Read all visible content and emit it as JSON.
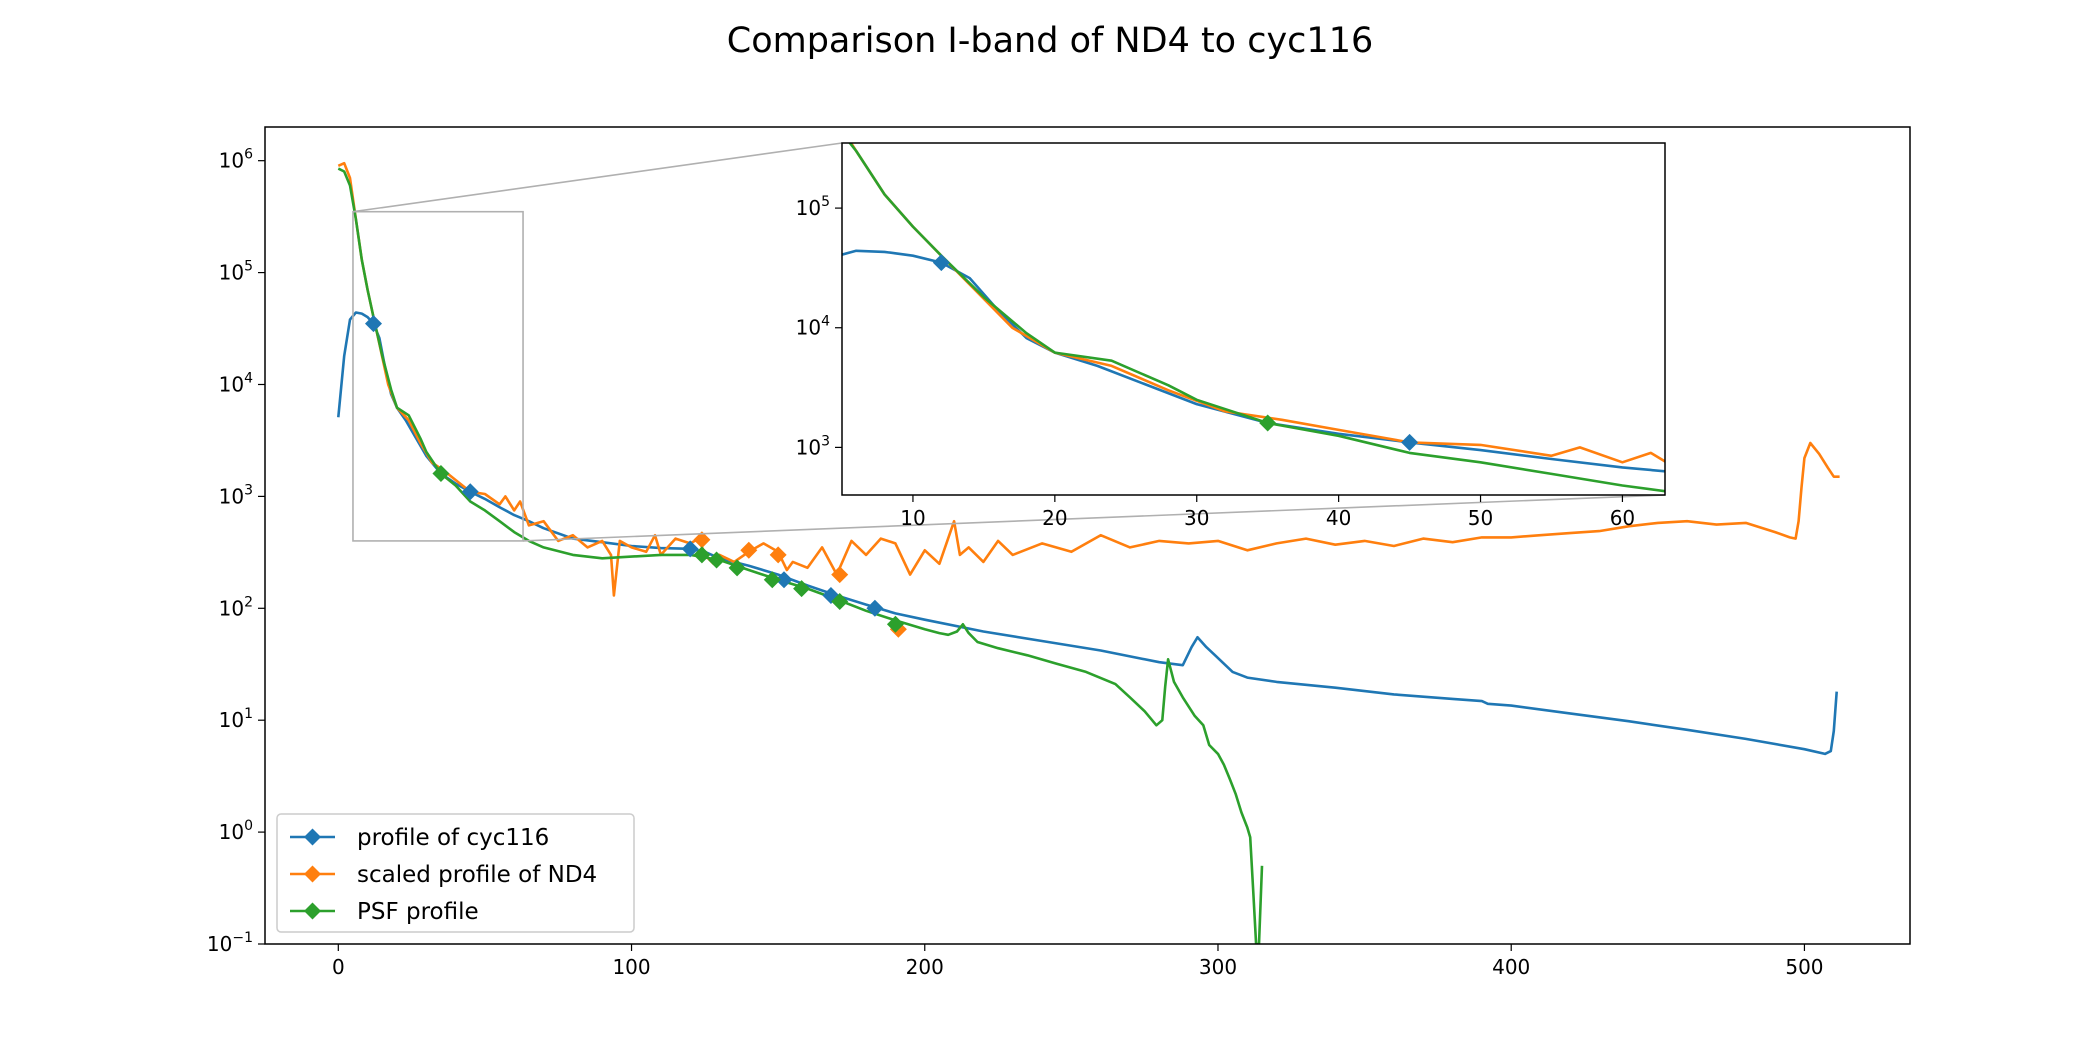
{
  "chart_data": {
    "type": "line",
    "title": "Comparison I-band of ND4 to cyc116",
    "xlabel": "",
    "ylabel": "",
    "xlim": [
      -25,
      536
    ],
    "ylim": [
      0.1,
      2000000
    ],
    "yscale": "log",
    "grid": false,
    "legend_position": "lower-left",
    "x_ticks": [
      0,
      100,
      200,
      300,
      400,
      500
    ],
    "x_tick_labels": [
      "0",
      "100",
      "200",
      "300",
      "400",
      "500"
    ],
    "y_ticks": [
      0.1,
      1,
      10,
      100,
      1000,
      10000,
      100000,
      1000000
    ],
    "y_tick_labels": [
      [
        "10",
        "−1"
      ],
      [
        "10",
        "0"
      ],
      [
        "10",
        "1"
      ],
      [
        "10",
        "2"
      ],
      [
        "10",
        "3"
      ],
      [
        "10",
        "4"
      ],
      [
        "10",
        "5"
      ],
      [
        "10",
        "6"
      ]
    ],
    "series": [
      {
        "name": "profile of cyc116",
        "color": "#1f77b4",
        "points": [
          [
            0,
            5100
          ],
          [
            2,
            18000
          ],
          [
            4,
            38000
          ],
          [
            6,
            44000
          ],
          [
            8,
            43000
          ],
          [
            10,
            40000
          ],
          [
            12,
            35000
          ],
          [
            14,
            26000
          ],
          [
            16,
            14000
          ],
          [
            18,
            8200
          ],
          [
            20,
            6200
          ],
          [
            23,
            4800
          ],
          [
            26,
            3500
          ],
          [
            30,
            2300
          ],
          [
            35,
            1600
          ],
          [
            40,
            1300
          ],
          [
            45,
            1100
          ],
          [
            50,
            950
          ],
          [
            55,
            800
          ],
          [
            60,
            680
          ],
          [
            65,
            600
          ],
          [
            70,
            520
          ],
          [
            80,
            420
          ],
          [
            90,
            390
          ],
          [
            100,
            360
          ],
          [
            110,
            345
          ],
          [
            120,
            340
          ],
          [
            125,
            320
          ],
          [
            130,
            280
          ],
          [
            140,
            240
          ],
          [
            150,
            200
          ],
          [
            160,
            160
          ],
          [
            170,
            130
          ],
          [
            180,
            108
          ],
          [
            190,
            90
          ],
          [
            200,
            79
          ],
          [
            220,
            62
          ],
          [
            240,
            51
          ],
          [
            260,
            42
          ],
          [
            280,
            33
          ],
          [
            288,
            31
          ],
          [
            291,
            45
          ],
          [
            293,
            55
          ],
          [
            296,
            45
          ],
          [
            299,
            38
          ],
          [
            302,
            32
          ],
          [
            305,
            27
          ],
          [
            310,
            24
          ],
          [
            320,
            22
          ],
          [
            340,
            19.5
          ],
          [
            360,
            17
          ],
          [
            380,
            15.5
          ],
          [
            390,
            14.8
          ],
          [
            392,
            14
          ],
          [
            400,
            13.5
          ],
          [
            420,
            11.5
          ],
          [
            440,
            9.8
          ],
          [
            460,
            8.2
          ],
          [
            480,
            6.8
          ],
          [
            500,
            5.5
          ],
          [
            507,
            5
          ],
          [
            509,
            5.3
          ],
          [
            510,
            8
          ],
          [
            511,
            18
          ]
        ],
        "markers": [
          [
            12,
            35000
          ],
          [
            45,
            1100
          ],
          [
            120,
            340
          ],
          [
            152,
            180
          ],
          [
            168,
            130
          ],
          [
            183,
            100
          ]
        ]
      },
      {
        "name": "scaled profile of ND4",
        "color": "#ff7f0e",
        "points": [
          [
            0,
            900000
          ],
          [
            2,
            950000
          ],
          [
            4,
            700000
          ],
          [
            6,
            300000
          ],
          [
            8,
            130000
          ],
          [
            10,
            70000
          ],
          [
            12,
            40000
          ],
          [
            14,
            23000
          ],
          [
            17,
            10000
          ],
          [
            20,
            6200
          ],
          [
            24,
            4800
          ],
          [
            28,
            3000
          ],
          [
            32,
            2000
          ],
          [
            36,
            1700
          ],
          [
            40,
            1400
          ],
          [
            45,
            1100
          ],
          [
            50,
            1050
          ],
          [
            55,
            850
          ],
          [
            57,
            1000
          ],
          [
            60,
            750
          ],
          [
            62,
            900
          ],
          [
            65,
            550
          ],
          [
            70,
            600
          ],
          [
            75,
            400
          ],
          [
            80,
            450
          ],
          [
            85,
            350
          ],
          [
            90,
            400
          ],
          [
            93,
            300
          ],
          [
            94,
            130
          ],
          [
            96,
            400
          ],
          [
            100,
            350
          ],
          [
            105,
            320
          ],
          [
            108,
            450
          ],
          [
            110,
            300
          ],
          [
            115,
            420
          ],
          [
            120,
            380
          ],
          [
            123,
            420
          ],
          [
            125,
            300
          ],
          [
            128,
            250
          ],
          [
            130,
            300
          ],
          [
            135,
            260
          ],
          [
            140,
            320
          ],
          [
            145,
            380
          ],
          [
            150,
            320
          ],
          [
            153,
            220
          ],
          [
            155,
            260
          ],
          [
            160,
            230
          ],
          [
            165,
            350
          ],
          [
            170,
            200
          ],
          [
            175,
            400
          ],
          [
            180,
            300
          ],
          [
            185,
            420
          ],
          [
            190,
            380
          ],
          [
            195,
            200
          ],
          [
            200,
            330
          ],
          [
            205,
            250
          ],
          [
            210,
            600
          ],
          [
            212,
            300
          ],
          [
            215,
            350
          ],
          [
            220,
            260
          ],
          [
            225,
            400
          ],
          [
            230,
            300
          ],
          [
            240,
            380
          ],
          [
            250,
            320
          ],
          [
            260,
            450
          ],
          [
            270,
            350
          ],
          [
            280,
            400
          ],
          [
            290,
            380
          ],
          [
            300,
            400
          ],
          [
            310,
            330
          ],
          [
            320,
            380
          ],
          [
            330,
            420
          ],
          [
            340,
            370
          ],
          [
            350,
            400
          ],
          [
            360,
            360
          ],
          [
            370,
            420
          ],
          [
            380,
            390
          ],
          [
            390,
            430
          ],
          [
            400,
            430
          ],
          [
            410,
            450
          ],
          [
            420,
            470
          ],
          [
            430,
            490
          ],
          [
            440,
            540
          ],
          [
            450,
            580
          ],
          [
            460,
            600
          ],
          [
            470,
            560
          ],
          [
            480,
            580
          ],
          [
            490,
            480
          ],
          [
            495,
            430
          ],
          [
            497,
            420
          ],
          [
            498,
            600
          ],
          [
            499,
            1200
          ],
          [
            500,
            2200
          ],
          [
            502,
            3000
          ],
          [
            505,
            2400
          ],
          [
            508,
            1800
          ],
          [
            510,
            1500
          ],
          [
            512,
            1500
          ]
        ],
        "markers": [
          [
            124,
            410
          ],
          [
            140,
            330
          ],
          [
            150,
            300
          ],
          [
            171,
            200
          ],
          [
            191,
            65
          ]
        ]
      },
      {
        "name": "PSF profile",
        "color": "#2ca02c",
        "points": [
          [
            0,
            850000
          ],
          [
            2,
            800000
          ],
          [
            4,
            600000
          ],
          [
            6,
            300000
          ],
          [
            8,
            130000
          ],
          [
            10,
            70000
          ],
          [
            12,
            40000
          ],
          [
            15,
            18000
          ],
          [
            18,
            9000
          ],
          [
            20,
            6200
          ],
          [
            24,
            5300
          ],
          [
            28,
            3300
          ],
          [
            30,
            2500
          ],
          [
            35,
            1600
          ],
          [
            40,
            1250
          ],
          [
            45,
            900
          ],
          [
            50,
            750
          ],
          [
            55,
            600
          ],
          [
            60,
            480
          ],
          [
            65,
            400
          ],
          [
            70,
            350
          ],
          [
            80,
            300
          ],
          [
            90,
            280
          ],
          [
            100,
            290
          ],
          [
            110,
            300
          ],
          [
            115,
            300
          ],
          [
            120,
            300
          ],
          [
            130,
            270
          ],
          [
            140,
            220
          ],
          [
            150,
            180
          ],
          [
            160,
            150
          ],
          [
            170,
            120
          ],
          [
            180,
            95
          ],
          [
            190,
            78
          ],
          [
            200,
            65
          ],
          [
            205,
            60
          ],
          [
            208,
            58
          ],
          [
            211,
            62
          ],
          [
            213,
            72
          ],
          [
            215,
            60
          ],
          [
            218,
            50
          ],
          [
            225,
            44
          ],
          [
            235,
            38
          ],
          [
            245,
            32
          ],
          [
            255,
            27
          ],
          [
            265,
            21
          ],
          [
            270,
            16
          ],
          [
            275,
            12
          ],
          [
            279,
            9
          ],
          [
            281,
            10
          ],
          [
            282,
            20
          ],
          [
            283,
            35
          ],
          [
            285,
            22
          ],
          [
            288,
            16
          ],
          [
            292,
            11
          ],
          [
            295,
            9
          ],
          [
            297,
            6
          ],
          [
            300,
            5
          ],
          [
            302,
            4
          ],
          [
            304,
            3
          ],
          [
            306,
            2.2
          ],
          [
            308,
            1.5
          ],
          [
            310,
            1.1
          ],
          [
            311,
            0.9
          ],
          [
            312,
            0.3
          ],
          [
            313,
            0.1
          ],
          [
            314,
            0.1
          ],
          [
            315,
            0.5
          ]
        ],
        "markers": [
          [
            35,
            1600
          ],
          [
            124,
            300
          ],
          [
            129,
            270
          ],
          [
            136,
            230
          ],
          [
            148,
            180
          ],
          [
            158,
            150
          ],
          [
            171,
            115
          ],
          [
            190,
            72
          ]
        ]
      }
    ],
    "inset": {
      "xlim": [
        5,
        63
      ],
      "ylim": [
        400,
        350000
      ],
      "yscale": "log",
      "x_ticks": [
        10,
        20,
        30,
        40,
        50,
        60
      ],
      "x_tick_labels": [
        "10",
        "20",
        "30",
        "40",
        "50",
        "60"
      ],
      "y_ticks": [
        1000,
        10000,
        100000
      ],
      "y_tick_labels": [
        [
          "10",
          "3"
        ],
        [
          "10",
          "4"
        ],
        [
          "10",
          "5"
        ]
      ],
      "markers": [
        {
          "series": 0,
          "points": [
            [
              12,
              35000
            ],
            [
              45,
              1100
            ]
          ]
        },
        {
          "series": 2,
          "points": [
            [
              35,
              1600
            ]
          ]
        }
      ]
    }
  }
}
